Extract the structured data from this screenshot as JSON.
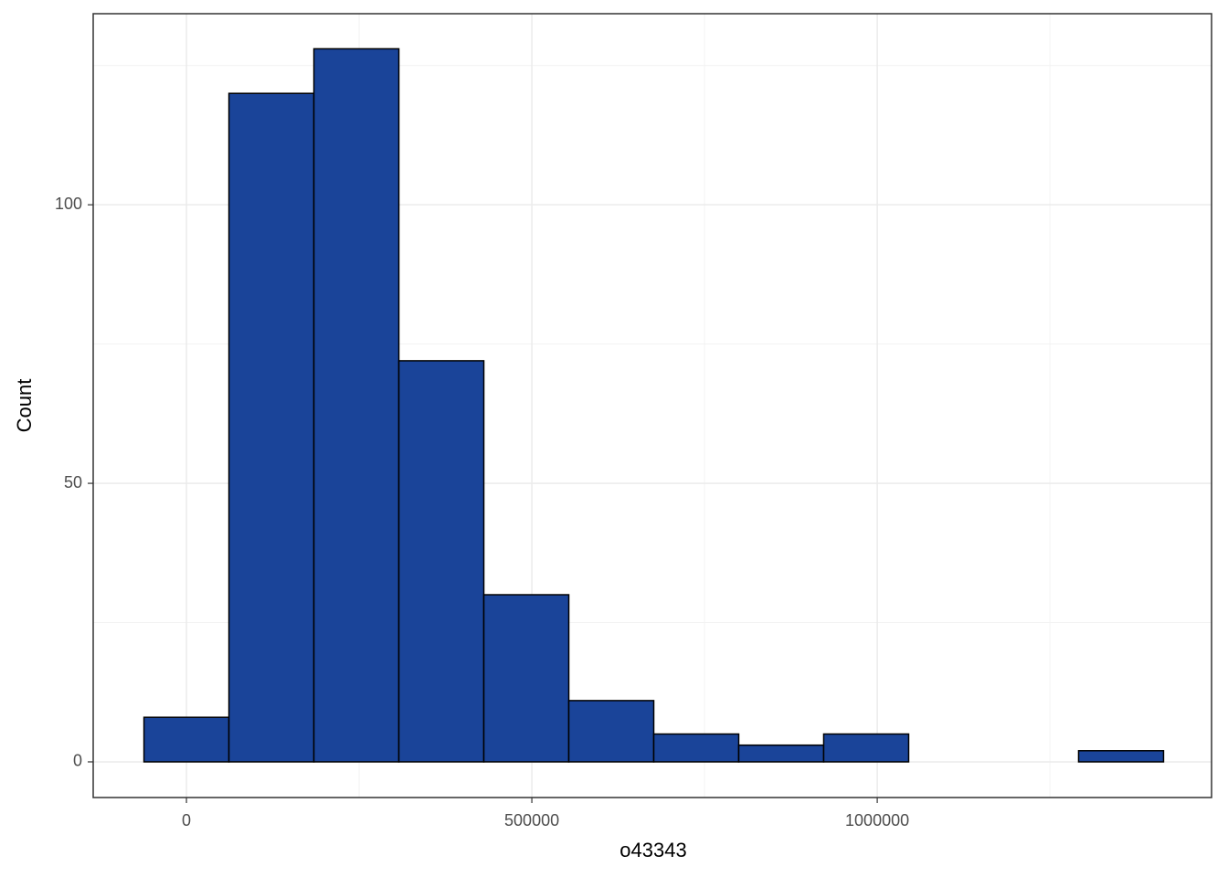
{
  "chart_data": {
    "type": "histogram",
    "x_label": "o43343",
    "y_label": "Count",
    "bins": [
      -61500,
      61500,
      184500,
      307500,
      430500,
      553500,
      676500,
      799500,
      922500,
      1045500,
      1168500,
      1291500,
      1414500
    ],
    "values": [
      8,
      120,
      128,
      72,
      30,
      11,
      5,
      3,
      5,
      0,
      0,
      2
    ],
    "color": "#1a4499",
    "xlim": [
      -135000,
      1484000
    ],
    "ylim": [
      -6.4,
      134.3
    ],
    "xticks": [
      0,
      500000,
      1000000
    ],
    "yticks": [
      0,
      50,
      100
    ],
    "xminor": [
      250000,
      750000,
      1250000
    ],
    "yminor": [
      25,
      75,
      125
    ],
    "grid": true
  }
}
